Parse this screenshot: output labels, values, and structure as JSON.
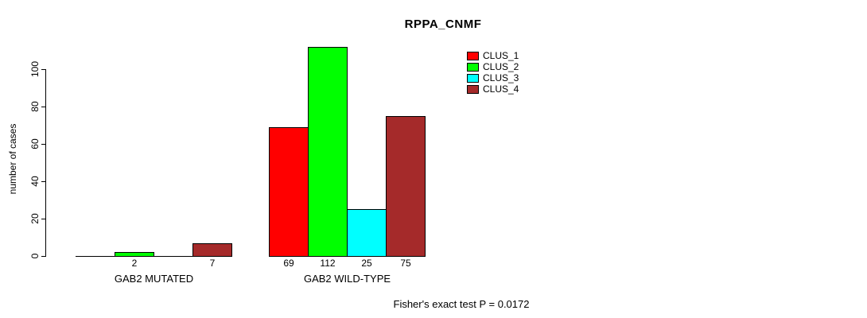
{
  "chart_data": {
    "type": "bar",
    "title": "RPPA_CNMF",
    "ylabel": "number of cases",
    "xlabel": "",
    "yticks": [
      0,
      20,
      40,
      60,
      80,
      100
    ],
    "ylim": [
      0,
      112
    ],
    "grid": false,
    "legend_position": "top-right",
    "series": [
      {
        "name": "CLUS_1",
        "color": "#FF0000"
      },
      {
        "name": "CLUS_2",
        "color": "#00FF00"
      },
      {
        "name": "CLUS_3",
        "color": "#00FFFF"
      },
      {
        "name": "CLUS_4",
        "color": "#A52A2A"
      }
    ],
    "groups": [
      {
        "label": "GAB2 MUTATED",
        "values": [
          0,
          2,
          0,
          7
        ]
      },
      {
        "label": "GAB2 WILD-TYPE",
        "values": [
          69,
          112,
          25,
          75
        ]
      }
    ],
    "bar_value_labels_shown": [
      [
        "",
        "2",
        "",
        "7"
      ],
      [
        "69",
        "112",
        "25",
        "75"
      ]
    ],
    "annotation": "Fisher's exact test P = 0.0172"
  },
  "colors": {
    "axis": "#000000",
    "text": "#000000",
    "background": "#FFFFFF"
  }
}
